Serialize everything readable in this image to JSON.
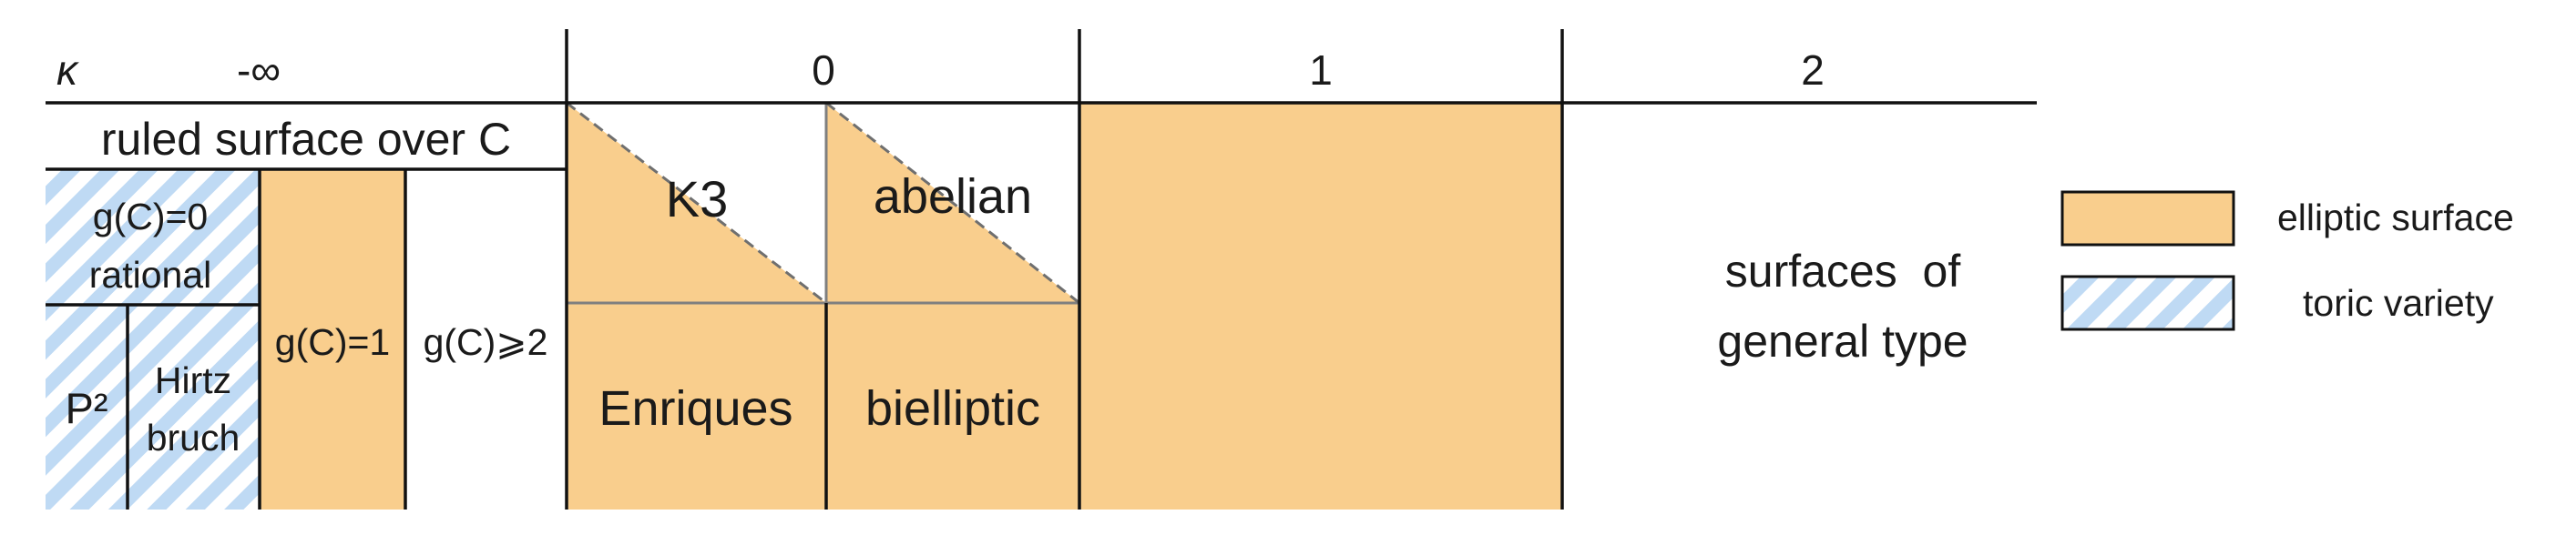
{
  "header": {
    "kappa_label": "κ",
    "neg_inf_label": "-∞",
    "col_0_label": "0",
    "col_1_label": "1",
    "col_2_label": "2"
  },
  "cells": {
    "ruled_surface": "ruled surface over C",
    "rational_line1": "g(C)=0",
    "rational_line2": "rational",
    "p2_label": "P²",
    "hirtz_line1": "Hirtz",
    "hirtz_line2": "bruch",
    "gc1_label": "g(C)=1",
    "gc_ge2_label": "g(C)⩾2",
    "k3_label": "K3",
    "abelian_label": "abelian",
    "enriques_label": "Enriques",
    "bielliptic_label": "bielliptic",
    "general_line1": "surfaces  of",
    "general_line2": "general type"
  },
  "legend": {
    "elliptic_label": "elliptic surface",
    "toric_label": "toric variety"
  },
  "colors": {
    "elliptic_fill": "#F9CE8D",
    "toric_stripe": "#BFDAF4",
    "line": "#111111",
    "grey_line": "#7f7f7f"
  }
}
